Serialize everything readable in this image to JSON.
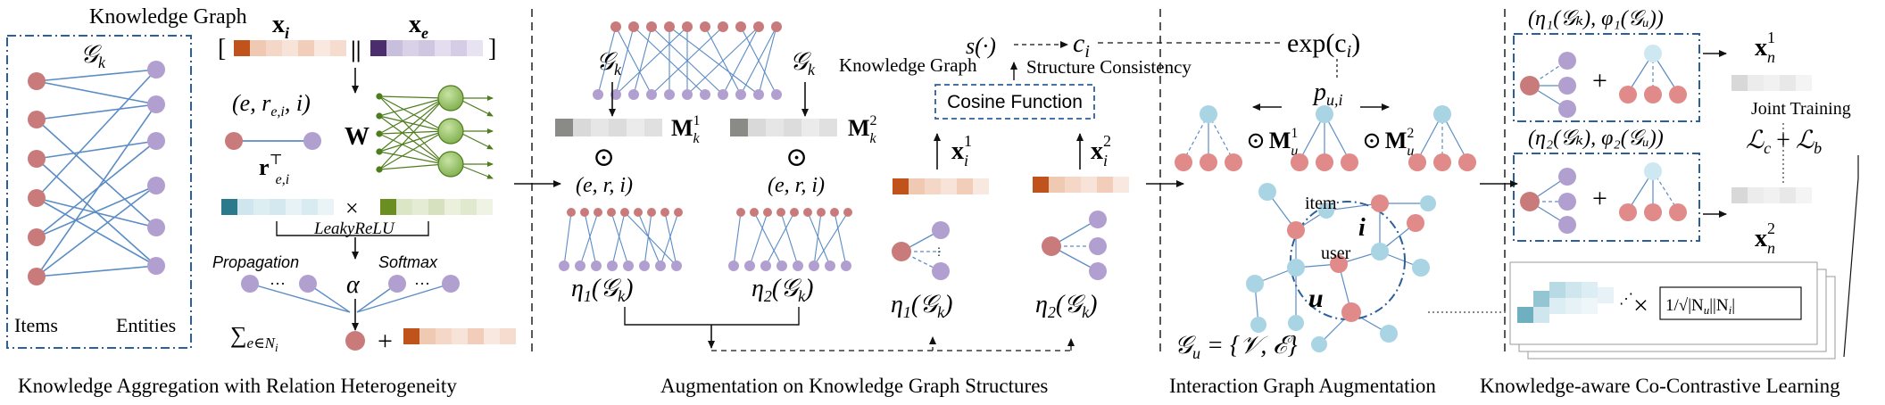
{
  "panels": [
    {
      "caption": "Knowledge Aggregation with Relation Heterogeneity"
    },
    {
      "caption": "Augmentation on Knowledge Graph Structures"
    },
    {
      "caption": "Interaction Graph Augmentation"
    },
    {
      "caption": "Knowledge-aware Co-Contrastive Learning"
    }
  ],
  "kg": {
    "title": "Knowledge Graph",
    "graph": "𝒢",
    "graph_sub": "k",
    "items": "Items",
    "entities": "Entities"
  },
  "agg": {
    "xi": "x",
    "xi_sub": "i",
    "xe": "x",
    "xe_sub": "e",
    "concat": "||",
    "bl": "[",
    "br": "]",
    "tuple": "(e, r",
    "tuple_sub": "e,i",
    "tuple_end": ", i)",
    "W": "W",
    "r": "r",
    "r_sup": "⊤",
    "r_sub": "e,i",
    "times": "×",
    "leaky": "LeakyReLU",
    "prop": "Propagation",
    "softmax": "Softmax",
    "alpha": "α",
    "dots": "···",
    "sum": "∑",
    "sum_sub": "e∈N",
    "sum_sub2": "i",
    "plus": "+"
  },
  "aug": {
    "gk_left": "𝒢",
    "gk_right": "𝒢",
    "k": "k",
    "m1": "M",
    "m1_sub": "k",
    "m1_sup": "1",
    "m2": "M",
    "m2_sub": "k",
    "m2_sup": "2",
    "odot": "⊙",
    "eri": "(e, r, i)",
    "eta1": "η",
    "eta1_sub": "1",
    "eta2": "η",
    "eta2_sub": "2",
    "gk_arg": "(𝒢",
    "close": ")",
    "s": "s(·)",
    "ci": "c",
    "ci_sub": "i",
    "kg_label": "Knowledge Graph",
    "sc_label": "Structure Consistency",
    "cosine": "Cosine Function",
    "x1": "x",
    "x1_sub": "i",
    "x1_sup": "1",
    "x2": "x",
    "x2_sub": "i",
    "x2_sup": "2"
  },
  "iga": {
    "exp": "exp(c",
    "exp_sub": "i",
    "exp_close": ")",
    "p": "p",
    "p_sub": "u,i",
    "mu1": "M",
    "mu1_sub": "u",
    "mu1_sup": "1",
    "mu2": "M",
    "mu2_sub": "u",
    "mu2_sup": "2",
    "item": "item",
    "i": "i",
    "user": "user",
    "u": "u",
    "gu": "𝒢",
    "gu_sub": "u",
    "gu_def": " = {𝒱, ℰ}"
  },
  "cl": {
    "v1": "(η₁(𝒢ₖ), φ₁(𝒢ᵤ))",
    "v2": "(η₂(𝒢ₖ), φ₂(𝒢ᵤ))",
    "xn": "x",
    "xn_sub": "n",
    "xn1_sup": "1",
    "xn2_sup": "2",
    "joint": "Joint Training",
    "loss": "ℒ",
    "loss_c": "c",
    "loss_b": "b",
    "plus": "+",
    "times": "×",
    "norm": "1/√|N",
    "norm_u": "u",
    "norm_mid": "||N",
    "norm_i": "i",
    "norm_end": "|"
  },
  "colors": {
    "item": "#c97b7b",
    "entity": "#b19fcf",
    "user": "#a9d4e3",
    "edge": "#5b8cc4",
    "frame": "#2d5f9a",
    "orange": "#c0521c",
    "purple": "#4b2d6e",
    "green": "#6b8e23",
    "teal": "#2a7a8c"
  }
}
